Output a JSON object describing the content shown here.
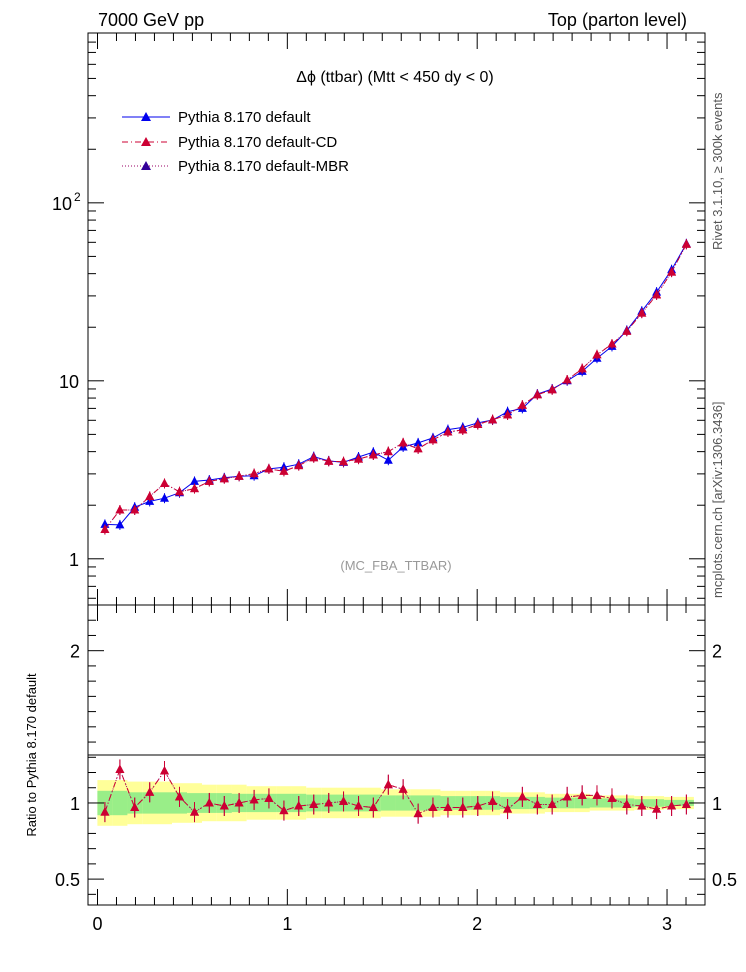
{
  "header": {
    "left": "7000 GeV pp",
    "right": "Top (parton level)"
  },
  "side_labels": {
    "rivet": "Rivet 3.1.10, ≥ 300k events",
    "mcplots": "mcplots.cern.ch [arXiv:1306.3436]"
  },
  "chart_data": [
    {
      "type": "line",
      "title": "Δϕ (ttbar) (Mtt < 450 dy < 0)",
      "watermark": "(MC_FBA_TTBAR)",
      "yscale": "log",
      "xlim": [
        -0.05,
        3.2
      ],
      "ylim": [
        0.55,
        900
      ],
      "y_tick_labels": [
        {
          "value": 1,
          "label": "1"
        },
        {
          "value": 10,
          "label": "10"
        },
        {
          "value": 100,
          "label": "10",
          "sup": "2"
        }
      ],
      "legend_position": "top-left",
      "x": [
        0.039,
        0.118,
        0.196,
        0.275,
        0.353,
        0.432,
        0.511,
        0.589,
        0.668,
        0.746,
        0.825,
        0.903,
        0.982,
        1.06,
        1.139,
        1.218,
        1.296,
        1.375,
        1.453,
        1.532,
        1.61,
        1.689,
        1.767,
        1.846,
        1.924,
        2.003,
        2.081,
        2.16,
        2.238,
        2.317,
        2.395,
        2.474,
        2.553,
        2.631,
        2.71,
        2.788,
        2.867,
        2.945,
        3.024,
        3.102
      ],
      "series": [
        {
          "name": "Pythia 8.170 default",
          "color": "#0000ee",
          "line": "solid",
          "values": [
            1.56,
            1.55,
            1.95,
            2.1,
            2.19,
            2.35,
            2.72,
            2.77,
            2.85,
            2.91,
            2.93,
            3.2,
            3.27,
            3.4,
            3.75,
            3.55,
            3.48,
            3.73,
            3.97,
            3.58,
            4.25,
            4.48,
            4.78,
            5.32,
            5.47,
            5.81,
            6.02,
            6.71,
            7.0,
            8.42,
            9.0,
            10.0,
            11.3,
            13.4,
            15.6,
            19.2,
            24.6,
            31.5,
            42.1,
            58.9
          ]
        },
        {
          "name": "Pythia 8.170 default-CD",
          "color": "#cc0033",
          "line": "dashdot",
          "values": [
            1.46,
            1.88,
            1.88,
            2.24,
            2.65,
            2.38,
            2.48,
            2.72,
            2.82,
            2.91,
            3.01,
            3.2,
            3.1,
            3.34,
            3.7,
            3.53,
            3.51,
            3.63,
            3.83,
            4.0,
            4.48,
            4.15,
            4.66,
            5.16,
            5.3,
            5.68,
            6.05,
            6.43,
            7.29,
            8.36,
            8.91,
            10.1,
            11.7,
            14.0,
            16.1,
            19.0,
            24.0,
            30.4,
            40.8,
            58.5
          ]
        },
        {
          "name": "Pythia 8.170 default-MBR",
          "color": "#990066",
          "line": "dotted",
          "values": [
            1.46,
            1.88,
            1.88,
            2.24,
            2.65,
            2.38,
            2.48,
            2.72,
            2.82,
            2.91,
            3.01,
            3.2,
            3.1,
            3.34,
            3.7,
            3.53,
            3.51,
            3.63,
            3.83,
            4.0,
            4.48,
            4.15,
            4.66,
            5.16,
            5.3,
            5.68,
            6.05,
            6.43,
            7.29,
            8.36,
            8.91,
            10.1,
            11.7,
            14.0,
            16.1,
            19.0,
            24.0,
            30.4,
            40.8,
            58.5
          ]
        }
      ]
    },
    {
      "type": "line",
      "ylabel": "Ratio to Pythia 8.170 default",
      "xlim": [
        -0.05,
        3.2
      ],
      "ylim": [
        0.33,
        2.3
      ],
      "x_ticks": [
        0,
        1,
        2,
        3
      ],
      "y_ticks": [
        0.5,
        1,
        2
      ],
      "x": [
        0.039,
        0.118,
        0.196,
        0.275,
        0.353,
        0.432,
        0.511,
        0.589,
        0.668,
        0.746,
        0.825,
        0.903,
        0.982,
        1.06,
        1.139,
        1.218,
        1.296,
        1.375,
        1.453,
        1.532,
        1.61,
        1.689,
        1.767,
        1.846,
        1.924,
        2.003,
        2.081,
        2.16,
        2.238,
        2.317,
        2.395,
        2.474,
        2.553,
        2.631,
        2.71,
        2.788,
        2.867,
        2.945,
        3.024,
        3.102
      ],
      "bands": {
        "green_half_width": [
          0.08,
          0.08,
          0.07,
          0.07,
          0.07,
          0.07,
          0.065,
          0.065,
          0.065,
          0.06,
          0.06,
          0.06,
          0.06,
          0.06,
          0.055,
          0.055,
          0.055,
          0.055,
          0.055,
          0.05,
          0.05,
          0.05,
          0.05,
          0.045,
          0.045,
          0.045,
          0.045,
          0.04,
          0.04,
          0.04,
          0.035,
          0.035,
          0.035,
          0.03,
          0.03,
          0.03,
          0.025,
          0.025,
          0.02,
          0.02
        ],
        "yellow_half_width": [
          0.15,
          0.15,
          0.14,
          0.14,
          0.14,
          0.13,
          0.13,
          0.12,
          0.12,
          0.12,
          0.11,
          0.11,
          0.11,
          0.11,
          0.1,
          0.1,
          0.1,
          0.1,
          0.1,
          0.09,
          0.09,
          0.09,
          0.09,
          0.08,
          0.08,
          0.08,
          0.08,
          0.07,
          0.07,
          0.07,
          0.06,
          0.06,
          0.06,
          0.05,
          0.05,
          0.05,
          0.045,
          0.045,
          0.04,
          0.04
        ],
        "green_color": "#99ee88",
        "yellow_color": "#ffff99"
      },
      "series": [
        {
          "name": "Pythia 8.170 default-CD",
          "color": "#cc0033",
          "values": [
            0.94,
            1.22,
            0.97,
            1.07,
            1.21,
            1.04,
            0.94,
            1.0,
            0.98,
            1.0,
            1.02,
            1.03,
            0.95,
            0.98,
            0.99,
            1.0,
            1.01,
            0.98,
            0.97,
            1.12,
            1.09,
            0.93,
            0.97,
            0.97,
            0.97,
            0.98,
            1.01,
            0.96,
            1.04,
            0.99,
            0.99,
            1.04,
            1.05,
            1.05,
            1.03,
            0.99,
            0.98,
            0.96,
            0.98,
            0.99
          ]
        },
        {
          "name": "Pythia 8.170 default-MBR",
          "color": "#990066",
          "values": [
            0.94,
            1.22,
            0.97,
            1.07,
            1.21,
            1.04,
            0.94,
            1.0,
            0.98,
            1.0,
            1.02,
            1.03,
            0.95,
            0.98,
            0.99,
            1.0,
            1.01,
            0.98,
            0.97,
            1.12,
            1.09,
            0.93,
            0.97,
            0.97,
            0.97,
            0.98,
            1.01,
            0.96,
            1.04,
            0.99,
            0.99,
            1.04,
            1.05,
            1.05,
            1.03,
            0.99,
            0.98,
            0.96,
            0.98,
            0.99
          ]
        }
      ]
    }
  ]
}
